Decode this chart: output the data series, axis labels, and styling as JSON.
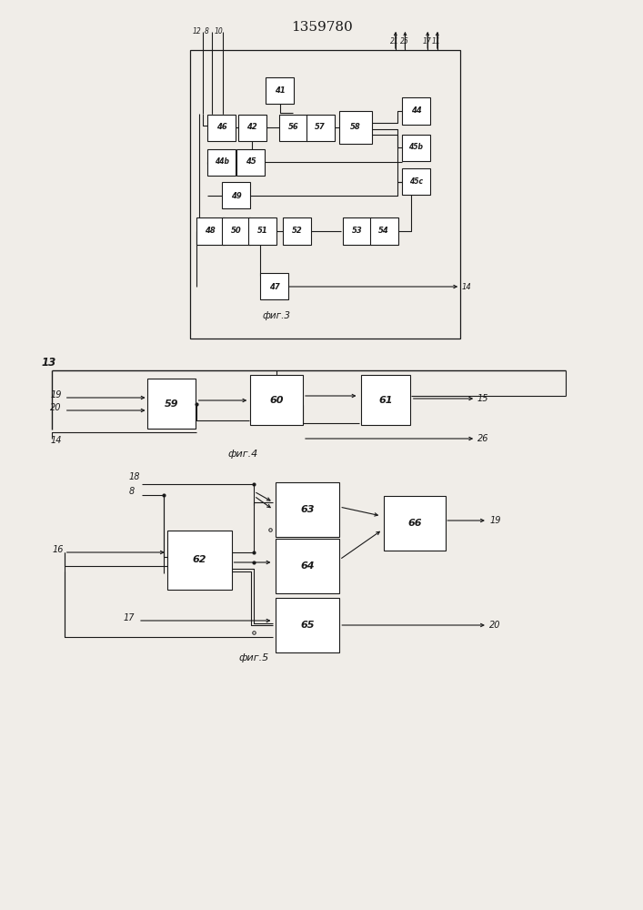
{
  "title": "1359780",
  "title_fontsize": 11,
  "bg_color": "#f0ede8",
  "line_color": "#1a1a1a",
  "box_color": "#ffffff",
  "box_edge": "#1a1a1a",
  "text_color": "#1a1a1a",
  "fig3_caption": "фиг.3",
  "fig4_caption": "фиг.4",
  "fig5_caption": "фиг.5"
}
